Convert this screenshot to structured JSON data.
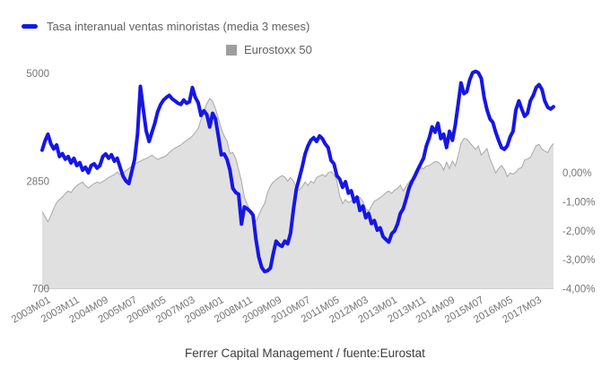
{
  "chart": {
    "legend": [
      {
        "label": "Tasa interanual ventas minoristas (media 3 meses)",
        "marker": "line-dash",
        "color": "#1616e6"
      },
      {
        "label": "Eurostoxx 50",
        "marker": "square",
        "color": "#9e9e9e"
      }
    ],
    "caption": "Ferrer Capital Management / fuente:Eurostat"
  },
  "chart_data": {
    "type": "line",
    "title": "",
    "x_start": "2003M01",
    "x_end": "2017M10",
    "x_interval": "monthly",
    "x_tick_every_n_months": 10,
    "x_tick_labels": [
      "2003M01",
      "2003M11",
      "2004M09",
      "2005M07",
      "2006M05",
      "2007M03",
      "2008M01",
      "2008M11",
      "2009M09",
      "2010M07",
      "2011M05",
      "2012M03",
      "2013M01",
      "2013M11",
      "2014M09",
      "2015M07",
      "2016M05",
      "2017M03"
    ],
    "left_axis": {
      "title": "",
      "ticks": [
        700,
        2850,
        5000
      ],
      "range": [
        700,
        5035
      ],
      "applies_to": "Eurostoxx 50"
    },
    "right_axis": {
      "title": "",
      "ticks": [
        "0,00%",
        "-1,00%",
        "-2,00%",
        "-3,00%",
        "-4,00%"
      ],
      "tick_values": [
        0,
        -1,
        -2,
        -3,
        -4
      ],
      "range": [
        -4.0,
        3.5
      ],
      "applies_to": "Tasa interanual ventas minoristas (media 3 meses)"
    },
    "grid": "off",
    "legend_position": "top",
    "series": [
      {
        "name": "Tasa interanual ventas minoristas (media 3 meses)",
        "type": "line",
        "axis": "right",
        "unit": "%",
        "color": "#1616e6",
        "values": [
          0.78,
          1.1,
          1.33,
          1.0,
          0.82,
          0.96,
          0.56,
          0.66,
          0.47,
          0.56,
          0.34,
          0.5,
          0.25,
          0.35,
          0.09,
          0.19,
          0.0,
          0.25,
          0.31,
          0.16,
          0.25,
          0.56,
          0.65,
          0.5,
          0.62,
          0.4,
          0.5,
          0.19,
          -0.12,
          -0.28,
          -0.37,
          0.03,
          0.47,
          1.33,
          2.98,
          2.2,
          1.45,
          1.08,
          1.4,
          1.71,
          2.11,
          2.35,
          2.51,
          2.6,
          2.67,
          2.55,
          2.48,
          2.4,
          2.36,
          2.51,
          2.4,
          2.45,
          2.94,
          2.6,
          2.42,
          1.98,
          2.14,
          2.0,
          1.58,
          2.05,
          1.86,
          1.27,
          0.62,
          0.65,
          0.46,
          0.1,
          -0.53,
          -0.68,
          -0.74,
          -1.77,
          -1.18,
          -1.24,
          -1.33,
          -1.46,
          -2.29,
          -2.91,
          -3.26,
          -3.41,
          -3.38,
          -3.29,
          -2.79,
          -2.36,
          -2.48,
          -2.54,
          -2.36,
          -2.45,
          -2.08,
          -1.24,
          -0.56,
          -0.19,
          0.19,
          0.65,
          0.93,
          1.12,
          1.21,
          1.08,
          1.27,
          1.18,
          0.99,
          0.87,
          0.43,
          0.31,
          -0.1,
          -0.22,
          -0.5,
          -0.31,
          -0.7,
          -0.62,
          -1.0,
          -0.84,
          -1.3,
          -1.15,
          -1.55,
          -1.4,
          -1.75,
          -1.65,
          -1.98,
          -1.9,
          -2.2,
          -2.3,
          -2.39,
          -2.1,
          -2.0,
          -1.77,
          -1.4,
          -1.24,
          -0.9,
          -0.53,
          -0.3,
          -0.12,
          0.1,
          0.31,
          0.5,
          0.93,
          1.2,
          1.58,
          1.4,
          1.71,
          1.18,
          1.33,
          0.87,
          1.43,
          1.12,
          1.64,
          2.36,
          3.1,
          2.73,
          2.8,
          3.2,
          3.45,
          3.5,
          3.45,
          3.26,
          2.6,
          2.17,
          1.86,
          1.74,
          1.4,
          1.12,
          0.87,
          0.81,
          0.93,
          1.24,
          1.43,
          2.17,
          2.48,
          2.2,
          1.95,
          2.05,
          2.48,
          2.67,
          2.94,
          3.04,
          2.88,
          2.48,
          2.26,
          2.2,
          2.28
        ]
      },
      {
        "name": "Eurostoxx 50",
        "type": "area",
        "axis": "left",
        "unit": "index points",
        "color": "#e0e0e0",
        "edge_color": "#a8a8a8",
        "values": [
          2240,
          2140,
          2040,
          2160,
          2300,
          2420,
          2480,
          2530,
          2600,
          2650,
          2620,
          2700,
          2760,
          2800,
          2830,
          2760,
          2710,
          2760,
          2800,
          2830,
          2810,
          2840,
          2880,
          2920,
          2950,
          2980,
          3030,
          2980,
          3000,
          3060,
          3100,
          3150,
          3190,
          3220,
          3250,
          3280,
          3300,
          3330,
          3370,
          3320,
          3280,
          3310,
          3330,
          3360,
          3420,
          3470,
          3510,
          3540,
          3570,
          3620,
          3660,
          3700,
          3750,
          3820,
          3900,
          4080,
          4250,
          4400,
          4500,
          4440,
          4300,
          4100,
          3900,
          3750,
          3650,
          3400,
          3420,
          3300,
          3070,
          2850,
          2530,
          2380,
          2260,
          2150,
          2040,
          2170,
          2300,
          2400,
          2620,
          2750,
          2830,
          2880,
          2920,
          2960,
          2930,
          2850,
          2920,
          2850,
          2710,
          2670,
          2740,
          2830,
          2760,
          2850,
          2810,
          2920,
          2950,
          2980,
          2940,
          3010,
          3040,
          2980,
          2860,
          2550,
          2400,
          2480,
          2420,
          2450,
          2500,
          2550,
          2520,
          2440,
          2300,
          2250,
          2350,
          2450,
          2480,
          2520,
          2560,
          2620,
          2650,
          2600,
          2670,
          2700,
          2770,
          2650,
          2750,
          2830,
          2890,
          3030,
          3090,
          3110,
          3100,
          3150,
          3160,
          3200,
          3240,
          3230,
          3180,
          3070,
          3230,
          3100,
          3250,
          3150,
          3350,
          3600,
          3700,
          3690,
          3620,
          3550,
          3480,
          3550,
          3370,
          3430,
          3500,
          3290,
          3160,
          3010,
          3100,
          3160,
          3080,
          2940,
          3010,
          2990,
          3030,
          3100,
          3120,
          3270,
          3290,
          3320,
          3440,
          3560,
          3580,
          3490,
          3450,
          3420,
          3530,
          3600
        ]
      }
    ],
    "axis_text_color": "#757575"
  }
}
